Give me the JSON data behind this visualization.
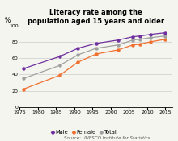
{
  "title": "Literacy rate among the\npopulation aged 15 years and older",
  "ylabel": "%",
  "source": "Source: UNESCO Institute for Statistics",
  "years": [
    1976,
    1986,
    1991,
    1996,
    2002,
    2006,
    2008,
    2011,
    2015
  ],
  "male": [
    47,
    62,
    72,
    78,
    82,
    86,
    87,
    89,
    91
  ],
  "female": [
    22,
    39,
    55,
    65,
    70,
    76,
    77,
    80,
    83
  ],
  "total": [
    35,
    51,
    64,
    72,
    76,
    82,
    83,
    85,
    87
  ],
  "male_color": "#7030a0",
  "female_color": "#f07030",
  "total_color": "#a0a0a0",
  "bg_color": "#f5f5f0",
  "ylim": [
    0,
    100
  ],
  "xlim": [
    1975,
    2017
  ],
  "xticks": [
    1975,
    1980,
    1985,
    1990,
    1995,
    2000,
    2005,
    2010,
    2015
  ],
  "yticks": [
    0,
    20,
    40,
    60,
    80,
    100
  ]
}
